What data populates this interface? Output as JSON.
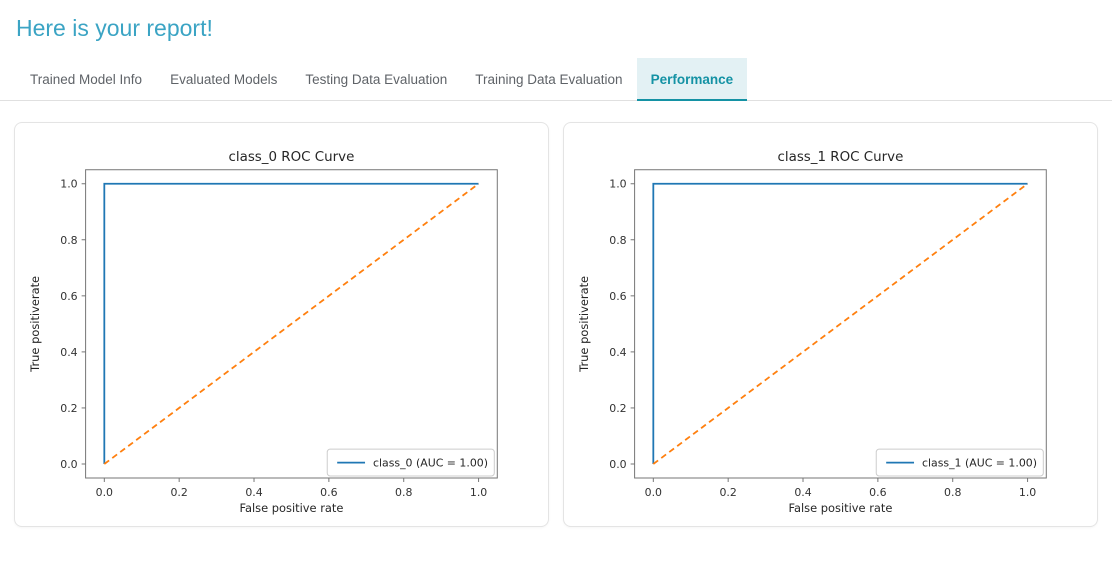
{
  "page": {
    "title": "Here is your report!"
  },
  "colors": {
    "title": "#3ba4c4",
    "tab_active": "#1492a4",
    "tab_active_bg": "#e3f1f4",
    "tab_inactive": "#5f6368",
    "tab_rule": "#e0e0e0",
    "card_border": "#e4e4e4",
    "spine": "#757575",
    "chart_text": "#262626",
    "tick_text": "#333333",
    "roc_blue": "#1f77b4",
    "chance_orange": "#ff7f0e",
    "legend_border": "#cccccc"
  },
  "tabs": [
    {
      "label": "Trained Model Info",
      "active": false
    },
    {
      "label": "Evaluated Models",
      "active": false
    },
    {
      "label": "Testing Data Evaluation",
      "active": false
    },
    {
      "label": "Training Data Evaluation",
      "active": false
    },
    {
      "label": "Performance",
      "active": true
    }
  ],
  "chart_data": [
    {
      "type": "line",
      "title": "class_0 ROC Curve",
      "xlabel": "False positive rate",
      "ylabel": "True positiverate",
      "xlim": [
        -0.05,
        1.05
      ],
      "ylim": [
        -0.05,
        1.05
      ],
      "xticks": [
        "0.0",
        "0.2",
        "0.4",
        "0.6",
        "0.8",
        "1.0"
      ],
      "yticks": [
        "0.0",
        "0.2",
        "0.4",
        "0.6",
        "0.8",
        "1.0"
      ],
      "grid": false,
      "legend": {
        "position": "lower right",
        "label": "class_0 (AUC = 1.00)"
      },
      "series": [
        {
          "name": "class_0-roc",
          "color": "#1f77b4",
          "dash": "solid",
          "x": [
            0,
            0,
            1
          ],
          "y": [
            0,
            1,
            1
          ]
        },
        {
          "name": "chance-diagonal",
          "color": "#ff7f0e",
          "dash": "dashed",
          "x": [
            0,
            1
          ],
          "y": [
            0,
            1
          ]
        }
      ]
    },
    {
      "type": "line",
      "title": "class_1 ROC Curve",
      "xlabel": "False positive rate",
      "ylabel": "True positiverate",
      "xlim": [
        -0.05,
        1.05
      ],
      "ylim": [
        -0.05,
        1.05
      ],
      "xticks": [
        "0.0",
        "0.2",
        "0.4",
        "0.6",
        "0.8",
        "1.0"
      ],
      "yticks": [
        "0.0",
        "0.2",
        "0.4",
        "0.6",
        "0.8",
        "1.0"
      ],
      "grid": false,
      "legend": {
        "position": "lower right",
        "label": "class_1 (AUC = 1.00)"
      },
      "series": [
        {
          "name": "class_1-roc",
          "color": "#1f77b4",
          "dash": "solid",
          "x": [
            0,
            0,
            1
          ],
          "y": [
            0,
            1,
            1
          ]
        },
        {
          "name": "chance-diagonal",
          "color": "#ff7f0e",
          "dash": "dashed",
          "x": [
            0,
            1
          ],
          "y": [
            0,
            1
          ]
        }
      ]
    }
  ]
}
